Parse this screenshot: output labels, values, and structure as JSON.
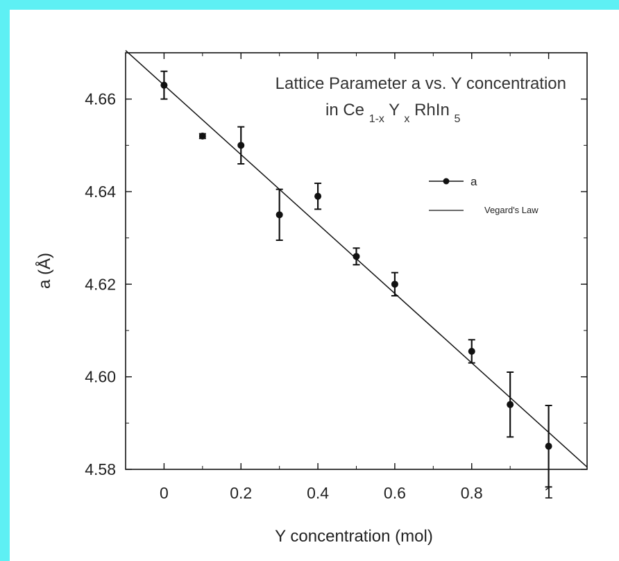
{
  "colors": {
    "background_border": "#5ef0f4",
    "plot_background": "#ffffff",
    "ink": "#111111"
  },
  "chart_data": {
    "type": "scatter",
    "title_line1": "Lattice Parameter a  vs. Y concentration",
    "title_line2": {
      "prefix": "in Ce",
      "sub1": "1-x",
      "mid": "Y",
      "sub2": "x",
      "rest": "RhIn",
      "sub3": "5"
    },
    "xlabel": "Y concentration   (mol)",
    "ylabel": "a   (Å)",
    "xlim": [
      -0.1,
      1.1
    ],
    "ylim": [
      4.58,
      4.67
    ],
    "x_ticks": [
      0,
      0.2,
      0.4,
      0.6,
      0.8,
      1
    ],
    "x_tick_labels": [
      "0",
      "0.2",
      "0.4",
      "0.6",
      "0.8",
      "1"
    ],
    "y_ticks": [
      4.58,
      4.6,
      4.62,
      4.64,
      4.66
    ],
    "y_tick_labels": [
      "4.58",
      "4.60",
      "4.62",
      "4.64",
      "4.66"
    ],
    "grid": false,
    "legend_position": "right-middle",
    "series": [
      {
        "name": "a",
        "kind": "points-with-errorbars",
        "x": [
          0,
          0.1,
          0.2,
          0.3,
          0.4,
          0.5,
          0.6,
          0.8,
          0.9,
          1.0
        ],
        "y": [
          4.663,
          4.652,
          4.65,
          4.635,
          4.639,
          4.626,
          4.62,
          4.6055,
          4.594,
          4.585
        ],
        "err": [
          0.003,
          0.0005,
          0.004,
          0.0055,
          0.0028,
          0.0018,
          0.0025,
          0.0025,
          0.007,
          0.0088
        ]
      },
      {
        "name": "Vegard's Law",
        "kind": "line",
        "x": [
          -0.1,
          1.1
        ],
        "y": [
          4.6705,
          4.5805
        ]
      }
    ]
  }
}
